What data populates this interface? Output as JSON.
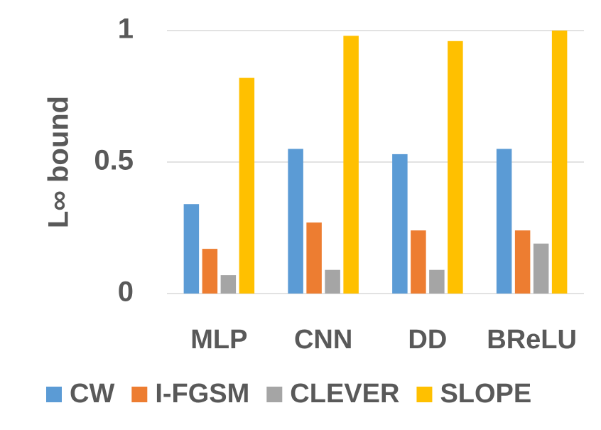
{
  "chart_data": {
    "type": "bar",
    "y_label": "L∞ bound",
    "categories": [
      "MLP",
      "CNN",
      "DD",
      "BReLU"
    ],
    "series": [
      {
        "name": "CW",
        "color": "#5b9bd5",
        "values": [
          0.34,
          0.55,
          0.53,
          0.55
        ]
      },
      {
        "name": "I-FGSM",
        "color": "#ed7d31",
        "values": [
          0.17,
          0.27,
          0.24,
          0.24
        ]
      },
      {
        "name": "CLEVER",
        "color": "#a5a5a5",
        "values": [
          0.07,
          0.09,
          0.09,
          0.19
        ]
      },
      {
        "name": "SLOPE",
        "color": "#ffc000",
        "values": [
          0.82,
          0.98,
          0.96,
          1.0
        ]
      }
    ],
    "ylim": [
      0,
      1
    ],
    "yticks": [
      0,
      0.5,
      1
    ],
    "grid": true,
    "legend": "bottom"
  }
}
